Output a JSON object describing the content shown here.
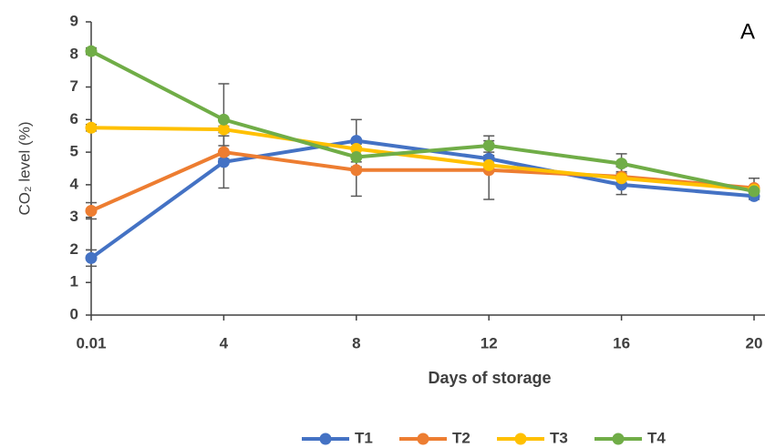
{
  "chart_data": {
    "type": "line",
    "annotation": "A",
    "xlabel": "Days of storage",
    "ylabel": "CO₂ level (%)",
    "categories": [
      "0.01",
      "4",
      "8",
      "12",
      "16",
      "20"
    ],
    "ylim": [
      0,
      9
    ],
    "yticks": [
      0,
      1,
      2,
      3,
      4,
      5,
      6,
      7,
      8,
      9
    ],
    "legend": "bottom",
    "series": [
      {
        "name": "T1",
        "color": "#4472c4",
        "values": [
          1.75,
          4.7,
          5.35,
          4.8,
          4.0,
          3.65
        ],
        "errors": [
          0.25,
          0.8,
          0.65,
          0.2,
          0.3,
          0.1
        ]
      },
      {
        "name": "T2",
        "color": "#ed7d31",
        "values": [
          3.2,
          5.0,
          4.45,
          4.45,
          4.25,
          3.9
        ],
        "errors": [
          0.25,
          0.2,
          0.8,
          0.9,
          0.3,
          0.3
        ]
      },
      {
        "name": "T3",
        "color": "#ffc000",
        "values": [
          5.75,
          5.7,
          5.1,
          4.6,
          4.2,
          3.85
        ],
        "errors": [
          0.1,
          0.1,
          0.2,
          0.2,
          0.2,
          0.1
        ]
      },
      {
        "name": "T4",
        "color": "#70ad47",
        "values": [
          8.1,
          6.0,
          4.85,
          5.2,
          4.65,
          3.8
        ],
        "errors": [
          0.1,
          1.1,
          0.3,
          0.3,
          0.3,
          0.1
        ]
      }
    ]
  }
}
